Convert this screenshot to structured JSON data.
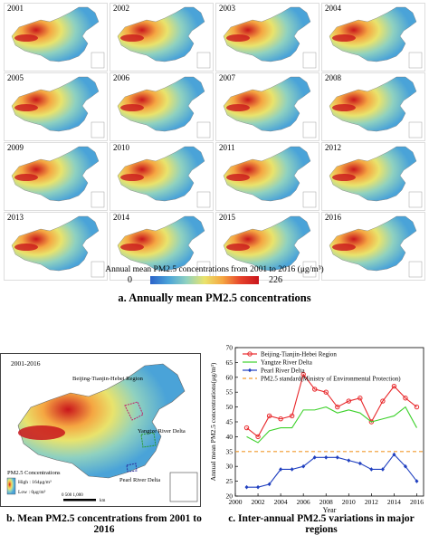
{
  "panel_a": {
    "years": [
      "2001",
      "2002",
      "2003",
      "2004",
      "2005",
      "2006",
      "2007",
      "2008",
      "2009",
      "2010",
      "2011",
      "2012",
      "2013",
      "2014",
      "2015",
      "2016"
    ],
    "colorbar_title": "Annual mean PM2.5 concentrations from 2001 to 2016 (μg/m³)",
    "colorbar_min": "0",
    "colorbar_max": "226",
    "caption": "a. Annually mean PM2.5 concentrations",
    "colors": {
      "low": "#2b62c9",
      "mid": "#e9e36c",
      "high": "#c9151c"
    }
  },
  "panel_b": {
    "title": "2001-2016",
    "labels": {
      "jjj": "Beijing-Tianjin-Hebei Region",
      "yrd": "Yangtze River Delta",
      "prd": "Pearl River Delta"
    },
    "legend_title": "PM2.5 Concentrations",
    "legend_high": "High : 164μg/m³",
    "legend_low": "Low : 0μg/m³",
    "scale_text": "0   500  1,000",
    "scale_unit": "km",
    "caption": "b. Mean PM2.5 concentrations from 2001 to 2016"
  },
  "panel_c": {
    "caption": "c. Inter-annual PM2.5 variations in major regions",
    "chart_data": {
      "type": "line",
      "x": [
        2001,
        2002,
        2003,
        2004,
        2005,
        2006,
        2007,
        2008,
        2009,
        2010,
        2011,
        2012,
        2013,
        2014,
        2015,
        2016
      ],
      "series": [
        {
          "name": "Beijing-Tianjin-Hebei Region",
          "color": "#e8282b",
          "marker": "circle",
          "values": [
            43,
            40,
            47,
            46,
            47,
            61,
            56,
            55,
            50,
            52,
            53,
            45,
            52,
            57,
            53,
            50
          ]
        },
        {
          "name": "Yangtze River Delta",
          "color": "#3dd12b",
          "marker": "none",
          "values": [
            40,
            38,
            42,
            43,
            43,
            49,
            49,
            50,
            48,
            49,
            48,
            45,
            46,
            47,
            50,
            43
          ]
        },
        {
          "name": "Pearl River Delta",
          "color": "#2040c0",
          "marker": "diamond",
          "values": [
            23,
            23,
            24,
            29,
            29,
            30,
            33,
            33,
            33,
            32,
            31,
            29,
            29,
            34,
            30,
            25
          ]
        }
      ],
      "reference": {
        "name": "PM2.5 standard(Ministry of Environmental Protection)",
        "value": 35,
        "color": "#f29a2e"
      },
      "xlabel": "Year",
      "ylabel": "Annual mean PM2.5 concentrations(μg/m³)",
      "xlim": [
        2000,
        2016.6
      ],
      "ylim": [
        20,
        70
      ],
      "xticks": [
        2000,
        2002,
        2004,
        2006,
        2008,
        2010,
        2012,
        2014,
        2016
      ],
      "yticks": [
        20,
        25,
        30,
        35,
        40,
        45,
        50,
        55,
        60,
        65,
        70
      ],
      "grid": false,
      "legend_position": "top-left"
    }
  }
}
